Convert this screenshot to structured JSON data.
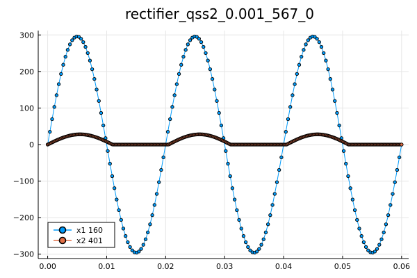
{
  "chart_data": {
    "type": "line",
    "title": "rectifier_qss2_0.001_567_0",
    "xlabel": "",
    "ylabel": "",
    "xlim": [
      -0.0016,
      0.0612
    ],
    "ylim": [
      -312,
      312
    ],
    "x_ticks": [
      0.0,
      0.01,
      0.02,
      0.03,
      0.04,
      0.05,
      0.06
    ],
    "x_tick_labels": [
      "0.00",
      "0.01",
      "0.02",
      "0.03",
      "0.04",
      "0.05",
      "0.06"
    ],
    "y_ticks": [
      -300,
      -200,
      -100,
      0,
      100,
      200,
      300
    ],
    "y_tick_labels": [
      "−300",
      "−200",
      "−100",
      "0",
      "100",
      "200",
      "300"
    ],
    "grid": true,
    "legend_position": "bottom-left",
    "series": [
      {
        "name": "x1 160",
        "color": "#009AFA",
        "marker": "circle",
        "description_of_shape": "sine wave amplitude 296, frequency 50 Hz, 160 points over x 0 to 0.06",
        "amplitude": 296,
        "frequency_hz": 50,
        "x_start": 0.0,
        "x_end": 0.06,
        "n_points": 160
      },
      {
        "name": "x2 401",
        "color": "#E26F46",
        "marker": "circle",
        "description_of_shape": "rectified half-sine bumps peaking near 28 during positive half-cycles (0–0.011, 0.020–0.031, 0.040–0.051), zero otherwise; 401 points",
        "peak": 28,
        "bumps": [
          [
            0.0,
            0.011
          ],
          [
            0.0205,
            0.031
          ],
          [
            0.0405,
            0.051
          ]
        ],
        "x_start": 0.0,
        "x_end": 0.06,
        "n_points": 401
      }
    ]
  }
}
